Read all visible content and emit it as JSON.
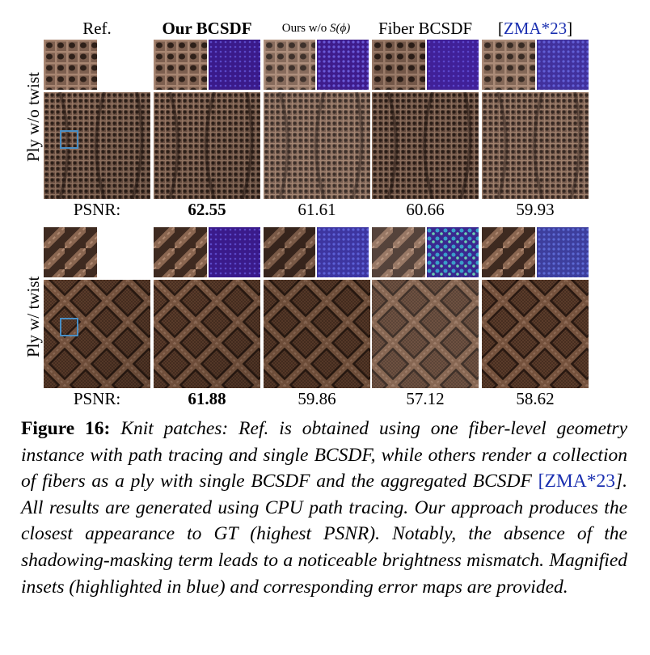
{
  "columns": {
    "ref": "Ref.",
    "ours": "Our BCSDF",
    "ours_wo_prefix": "Ours w/o ",
    "ours_wo_symbol": "S(ϕ)",
    "fiber": "Fiber BCSDF",
    "zma_open": "[",
    "zma_cite": "ZMA*23",
    "zma_close": "]"
  },
  "rows": [
    {
      "label": "Ply w/o twist",
      "psnr_label": "PSNR:",
      "psnr": [
        "62.55",
        "61.61",
        "60.66",
        "59.93"
      ],
      "best": "62.55"
    },
    {
      "label": "Ply w/ twist",
      "psnr_label": "PSNR:",
      "psnr": [
        "61.88",
        "59.86",
        "57.12",
        "58.62"
      ],
      "best": "61.88"
    }
  ],
  "caption": {
    "figure_label": "Figure 16:",
    "text_1": " Knit patches: Ref. is obtained using one fiber-level geometry instance with path tracing and single BCSDF, while others render a collection of fibers as a ply with single BCSDF and the aggregated BCSDF ",
    "cite_open": "[",
    "cite": "ZMA*23",
    "cite_close": "]",
    "text_2": ". All results are generated using CPU path tracing. Our approach produces the closest appearance to GT (highest PSNR). Notably, the absence of the shadowing-masking term leads to a noticeable brightness mismatch. Magnified insets (highlighted in blue) and corresponding error maps are provided."
  },
  "colors": {
    "knit_light": "#8a6a58",
    "knit_dark": "#3a2a22",
    "cable_light": "#6e4c36",
    "cable_dark": "#2a1a12",
    "error_base": "#3d1a8a",
    "inset_box": "#4a8ec4",
    "cite": "#1a2fb0"
  }
}
